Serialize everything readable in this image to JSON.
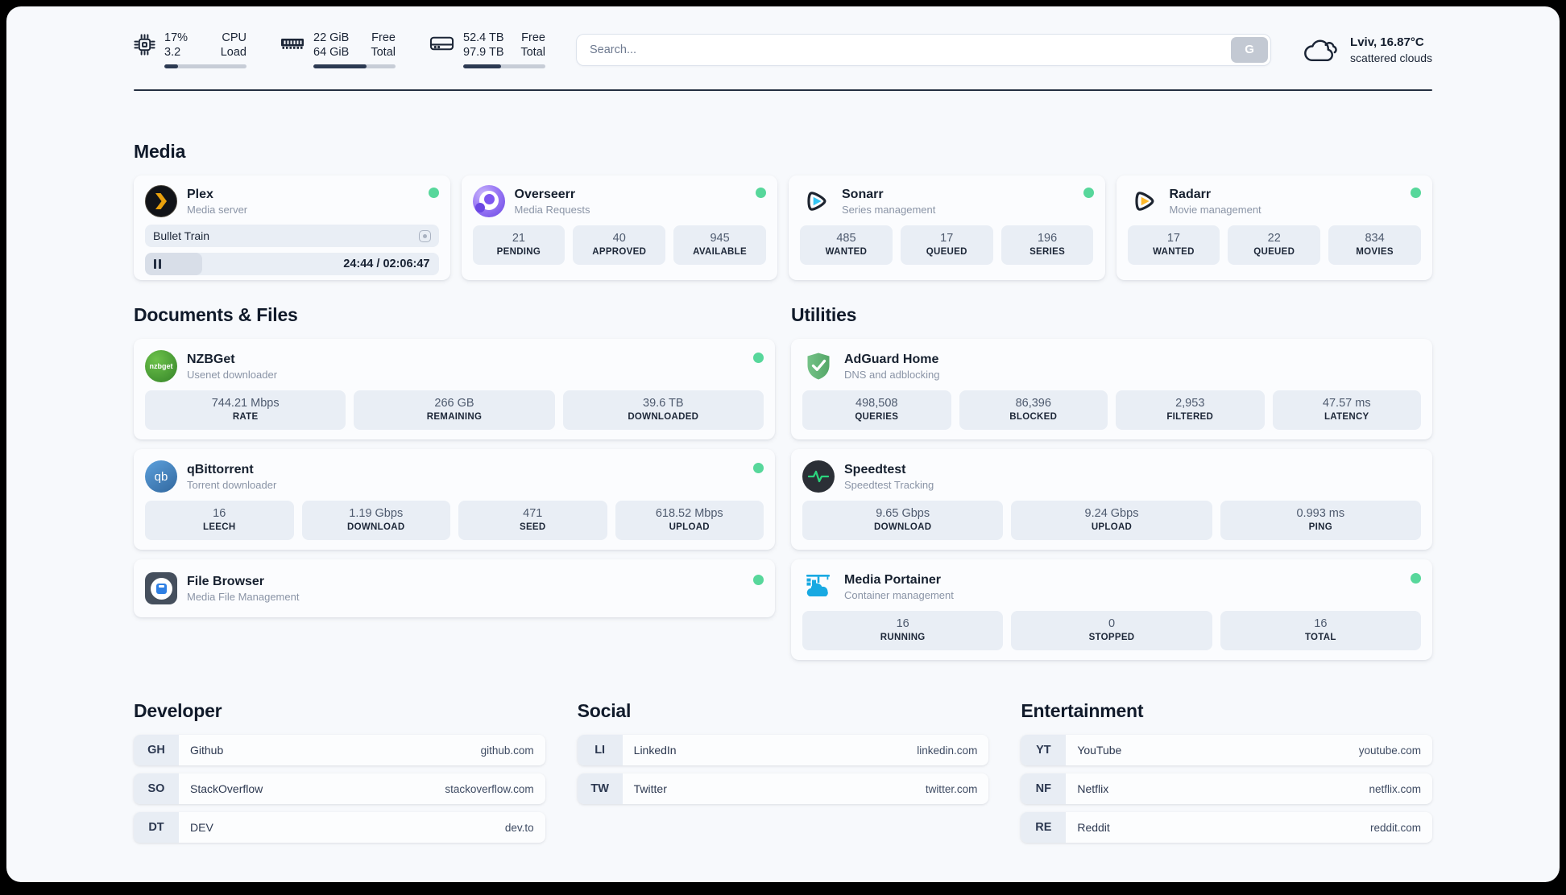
{
  "colors": {
    "status_green": "#57d79b",
    "plex_gold": "#e8a00d",
    "sonarr_cyan": "#33c5f4",
    "radarr_gold": "#ffb92a",
    "speedtest_pulse": "#2bd47d",
    "portainer_blue": "#18a9e2"
  },
  "topbar": {
    "cpu": {
      "top_value": "17%",
      "top_label": "CPU",
      "bottom_value": "3.2",
      "bottom_label": "Load",
      "progress": 17
    },
    "memory": {
      "top_value": "22 GiB",
      "top_label": "Free",
      "bottom_value": "64 GiB",
      "bottom_label": "Total",
      "progress": 65
    },
    "disk": {
      "top_value": "52.4 TB",
      "top_label": "Free",
      "bottom_value": "97.9 TB",
      "bottom_label": "Total",
      "progress": 46.5
    },
    "search": {
      "placeholder": "Search...",
      "button_label": "G"
    },
    "weather": {
      "location": "Lviv, 16.87°C",
      "condition": "scattered clouds"
    }
  },
  "media": {
    "heading": "Media",
    "plex": {
      "name": "Plex",
      "description": "Media server",
      "now_playing": "Bullet Train",
      "time": "24:44 / 02:06:47",
      "progress": 19.5
    },
    "overseerr": {
      "name": "Overseerr",
      "description": "Media Requests",
      "stats": [
        {
          "value": "21",
          "label": "PENDING"
        },
        {
          "value": "40",
          "label": "APPROVED"
        },
        {
          "value": "945",
          "label": "AVAILABLE"
        }
      ]
    },
    "sonarr": {
      "name": "Sonarr",
      "description": "Series management",
      "stats": [
        {
          "value": "485",
          "label": "WANTED"
        },
        {
          "value": "17",
          "label": "QUEUED"
        },
        {
          "value": "196",
          "label": "SERIES"
        }
      ]
    },
    "radarr": {
      "name": "Radarr",
      "description": "Movie management",
      "stats": [
        {
          "value": "17",
          "label": "WANTED"
        },
        {
          "value": "22",
          "label": "QUEUED"
        },
        {
          "value": "834",
          "label": "MOVIES"
        }
      ]
    }
  },
  "documents": {
    "heading": "Documents & Files",
    "nzbget": {
      "name": "NZBGet",
      "description": "Usenet downloader",
      "icon_text": "nzbget",
      "stats": [
        {
          "value": "744.21 Mbps",
          "label": "RATE"
        },
        {
          "value": "266 GB",
          "label": "REMAINING"
        },
        {
          "value": "39.6 TB",
          "label": "DOWNLOADED"
        }
      ]
    },
    "qbittorrent": {
      "name": "qBittorrent",
      "description": "Torrent downloader",
      "icon_text": "qb",
      "stats": [
        {
          "value": "16",
          "label": "LEECH"
        },
        {
          "value": "1.19 Gbps",
          "label": "DOWNLOAD"
        },
        {
          "value": "471",
          "label": "SEED"
        },
        {
          "value": "618.52 Mbps",
          "label": "UPLOAD"
        }
      ]
    },
    "filebrowser": {
      "name": "File Browser",
      "description": "Media File Management"
    }
  },
  "utilities": {
    "heading": "Utilities",
    "adguard": {
      "name": "AdGuard Home",
      "description": "DNS and adblocking",
      "stats": [
        {
          "value": "498,508",
          "label": "QUERIES"
        },
        {
          "value": "86,396",
          "label": "BLOCKED"
        },
        {
          "value": "2,953",
          "label": "FILTERED"
        },
        {
          "value": "47.57 ms",
          "label": "LATENCY"
        }
      ]
    },
    "speedtest": {
      "name": "Speedtest",
      "description": "Speedtest Tracking",
      "stats": [
        {
          "value": "9.65 Gbps",
          "label": "DOWNLOAD"
        },
        {
          "value": "9.24 Gbps",
          "label": "UPLOAD"
        },
        {
          "value": "0.993 ms",
          "label": "PING"
        }
      ]
    },
    "portainer": {
      "name": "Media Portainer",
      "description": "Container management",
      "stats": [
        {
          "value": "16",
          "label": "RUNNING"
        },
        {
          "value": "0",
          "label": "STOPPED"
        },
        {
          "value": "16",
          "label": "TOTAL"
        }
      ]
    }
  },
  "links": {
    "developer": {
      "heading": "Developer",
      "items": [
        {
          "badge": "GH",
          "name": "Github",
          "url": "github.com"
        },
        {
          "badge": "SO",
          "name": "StackOverflow",
          "url": "stackoverflow.com"
        },
        {
          "badge": "DT",
          "name": "DEV",
          "url": "dev.to"
        }
      ]
    },
    "social": {
      "heading": "Social",
      "items": [
        {
          "badge": "LI",
          "name": "LinkedIn",
          "url": "linkedin.com"
        },
        {
          "badge": "TW",
          "name": "Twitter",
          "url": "twitter.com"
        }
      ]
    },
    "entertainment": {
      "heading": "Entertainment",
      "items": [
        {
          "badge": "YT",
          "name": "YouTube",
          "url": "youtube.com"
        },
        {
          "badge": "NF",
          "name": "Netflix",
          "url": "netflix.com"
        },
        {
          "badge": "RE",
          "name": "Reddit",
          "url": "reddit.com"
        }
      ]
    }
  }
}
